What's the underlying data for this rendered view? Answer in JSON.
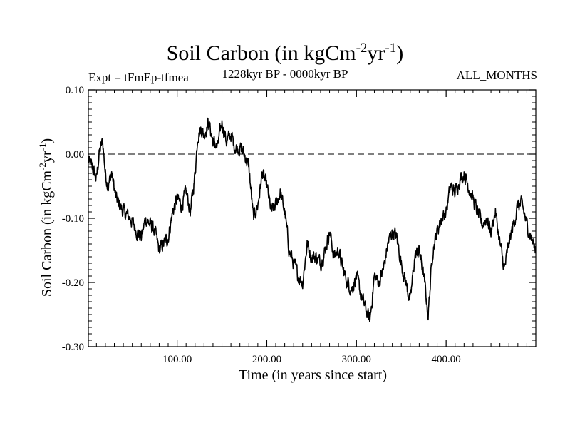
{
  "chart_data": {
    "type": "line",
    "title_main": "Soil Carbon (in kgCm",
    "title_exp1": "-2",
    "title_mid": "yr",
    "title_exp2": "-1",
    "title_end": ")",
    "subtitle_left": "Expt = tFmEp-tfmea",
    "subtitle_center": "1228kyr BP - 0000kyr BP",
    "subtitle_right": "ALL_MONTHS",
    "ylabel_main": "Soil Carbon (in kgCm",
    "ylabel_exp1": "-2",
    "ylabel_mid": "yr",
    "ylabel_exp2": "-1",
    "ylabel_end": ")",
    "xlabel": "Time (in years since start)",
    "xlim": [
      1,
      500
    ],
    "ylim": [
      -0.3,
      0.1
    ],
    "xticks": [
      100,
      200,
      300,
      400
    ],
    "xtick_labels": [
      "100.00",
      "200.00",
      "300.00",
      "400.00"
    ],
    "yticks": [
      0.1,
      0.0,
      -0.1,
      -0.2,
      -0.3
    ],
    "ytick_labels": [
      "0.10",
      "0.00",
      "-0.10",
      "-0.20",
      "-0.30"
    ],
    "reference_line": 0.0,
    "reference_style": "dashed",
    "series": [
      {
        "name": "Soil Carbon",
        "x": [
          1,
          5,
          10,
          13,
          17,
          20,
          23,
          27,
          32,
          40,
          48,
          55,
          60,
          65,
          70,
          75,
          80,
          85,
          90,
          95,
          100,
          105,
          110,
          115,
          120,
          123,
          127,
          130,
          135,
          140,
          145,
          150,
          155,
          160,
          165,
          170,
          175,
          180,
          185,
          190,
          195,
          200,
          205,
          210,
          215,
          220,
          225,
          230,
          235,
          240,
          245,
          250,
          255,
          260,
          265,
          270,
          275,
          280,
          285,
          290,
          295,
          300,
          305,
          310,
          315,
          320,
          325,
          330,
          335,
          340,
          345,
          350,
          355,
          360,
          365,
          370,
          375,
          380,
          385,
          390,
          395,
          400,
          405,
          410,
          415,
          420,
          425,
          430,
          435,
          440,
          445,
          450,
          455,
          460,
          465,
          470,
          475,
          480,
          485,
          490,
          495,
          500
        ],
        "y": [
          -0.01,
          -0.02,
          -0.04,
          0.0,
          0.02,
          -0.03,
          -0.05,
          -0.03,
          -0.07,
          -0.09,
          -0.1,
          -0.12,
          -0.13,
          -0.1,
          -0.11,
          -0.12,
          -0.15,
          -0.14,
          -0.13,
          -0.09,
          -0.07,
          -0.08,
          -0.06,
          -0.09,
          -0.03,
          0.03,
          0.04,
          0.03,
          0.05,
          0.02,
          0.01,
          0.05,
          0.02,
          0.03,
          0.01,
          0.01,
          0.0,
          -0.02,
          -0.1,
          -0.08,
          -0.03,
          -0.05,
          -0.09,
          -0.08,
          -0.06,
          -0.09,
          -0.15,
          -0.17,
          -0.19,
          -0.2,
          -0.14,
          -0.16,
          -0.16,
          -0.17,
          -0.15,
          -0.12,
          -0.16,
          -0.15,
          -0.18,
          -0.2,
          -0.21,
          -0.19,
          -0.22,
          -0.24,
          -0.26,
          -0.19,
          -0.2,
          -0.18,
          -0.14,
          -0.12,
          -0.13,
          -0.17,
          -0.2,
          -0.23,
          -0.16,
          -0.15,
          -0.19,
          -0.25,
          -0.15,
          -0.12,
          -0.1,
          -0.09,
          -0.05,
          -0.06,
          -0.04,
          -0.03,
          -0.05,
          -0.07,
          -0.09,
          -0.11,
          -0.1,
          -0.12,
          -0.09,
          -0.14,
          -0.18,
          -0.14,
          -0.11,
          -0.08,
          -0.08,
          -0.11,
          -0.13,
          -0.15
        ]
      }
    ]
  }
}
